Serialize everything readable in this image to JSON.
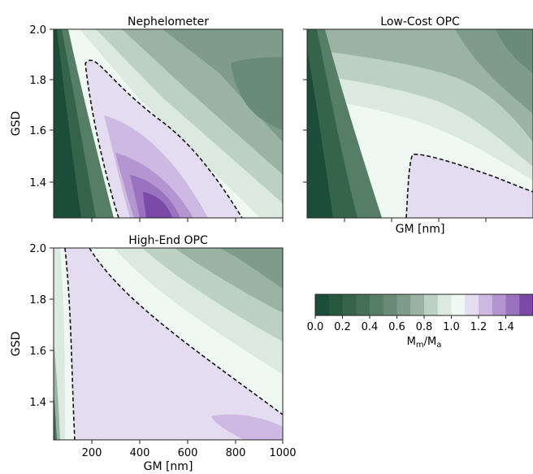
{
  "chart_data": {
    "type": "heatmap",
    "subplots": [
      {
        "title": "Nephelometer",
        "xlabel": "",
        "ylabel": "GSD",
        "show_xticklabels": false,
        "show_yticklabels": true,
        "xlim": [
          50,
          1000
        ],
        "ylim": [
          1.25,
          2.0
        ],
        "dashed_contour_level": 1.0,
        "field_samples": [
          {
            "gm": 200,
            "gsd": 1.3,
            "ratio": 0.6
          },
          {
            "gm": 450,
            "gsd": 1.3,
            "ratio": 1.45
          },
          {
            "gm": 300,
            "gsd": 1.6,
            "ratio": 1.1
          },
          {
            "gm": 800,
            "gsd": 1.8,
            "ratio": 0.5
          }
        ]
      },
      {
        "title": "Low-Cost OPC",
        "xlabel": "GM [nm]",
        "ylabel": "",
        "show_xticklabels": false,
        "show_yticklabels": false,
        "xlim": [
          50,
          1000
        ],
        "ylim": [
          1.25,
          2.0
        ],
        "dashed_contour_level": 1.0,
        "field_samples": [
          {
            "gm": 100,
            "gsd": 1.3,
            "ratio": 0.05
          },
          {
            "gm": 800,
            "gsd": 1.35,
            "ratio": 1.05
          },
          {
            "gm": 500,
            "gsd": 1.8,
            "ratio": 0.9
          },
          {
            "gm": 800,
            "gsd": 1.95,
            "ratio": 0.6
          }
        ]
      },
      {
        "title": "High-End OPC",
        "xlabel": "GM [nm]",
        "ylabel": "GSD",
        "show_xticklabels": true,
        "show_yticklabels": true,
        "xlim": [
          50,
          1000
        ],
        "ylim": [
          1.25,
          2.0
        ],
        "dashed_contour_level": 1.0,
        "field_samples": [
          {
            "gm": 60,
            "gsd": 1.3,
            "ratio": 0.5
          },
          {
            "gm": 400,
            "gsd": 1.5,
            "ratio": 1.05
          },
          {
            "gm": 850,
            "gsd": 1.3,
            "ratio": 1.2
          },
          {
            "gm": 800,
            "gsd": 1.9,
            "ratio": 0.65
          }
        ]
      }
    ],
    "x_ticks": [
      200,
      400,
      600,
      800,
      1000
    ],
    "y_ticks": [
      1.4,
      1.6,
      1.8,
      2.0
    ],
    "y_tick_labels": [
      "1.4",
      "1.6",
      "1.8",
      "2.0"
    ],
    "colorbar": {
      "levels": [
        0.0,
        0.1,
        0.2,
        0.3,
        0.4,
        0.5,
        0.6,
        0.7,
        0.8,
        0.9,
        1.0,
        1.1,
        1.2,
        1.3,
        1.4,
        1.5
      ],
      "tick_labels": [
        "0.0",
        "0.2",
        "0.4",
        "0.6",
        "0.8",
        "1.0",
        "1.2",
        "1.4"
      ],
      "label": "M_m/M_a",
      "colors": [
        "#1b4d3a",
        "#28583f",
        "#35644b",
        "#456f58",
        "#567d66",
        "#6a8b77",
        "#7f9c8a",
        "#9bb3a3",
        "#bcd1c3",
        "#dbe9e0",
        "#f0f8f3",
        "#e4dcf0",
        "#cdb9e2",
        "#b495d1",
        "#9a72bf",
        "#7b4aa9"
      ]
    }
  }
}
